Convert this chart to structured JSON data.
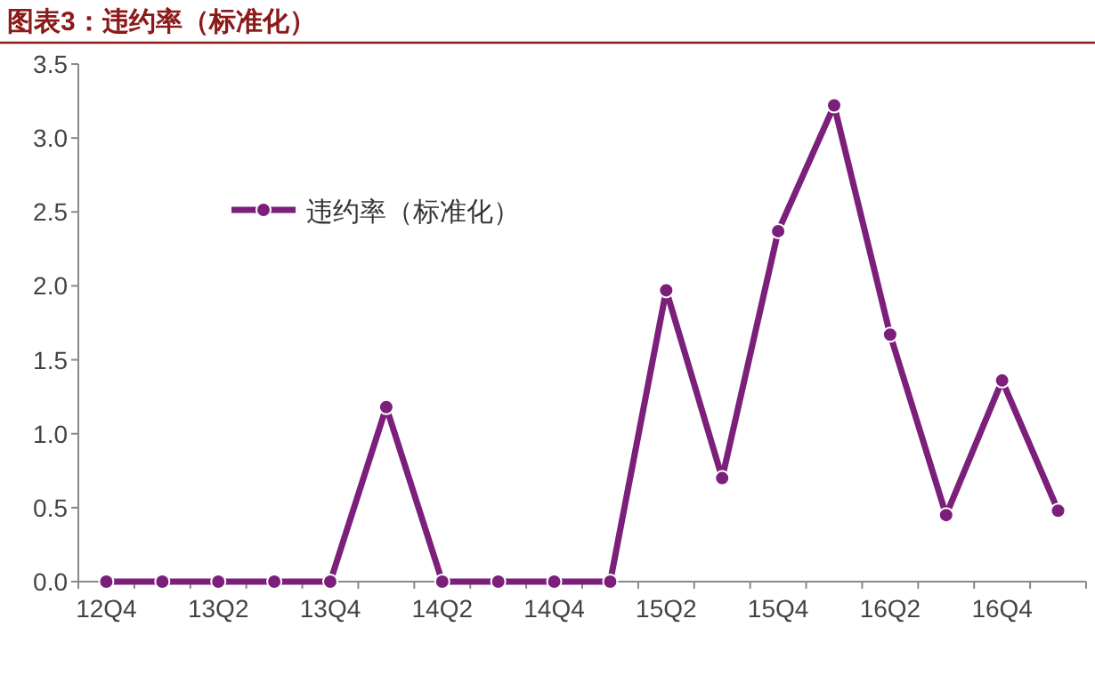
{
  "chart_data": {
    "type": "line",
    "title": "图表3：违约率（标准化）",
    "categories": [
      "12Q4",
      null,
      "13Q2",
      null,
      "13Q4",
      null,
      "14Q2",
      null,
      "14Q4",
      null,
      "15Q2",
      null,
      "15Q4",
      null,
      "16Q2",
      null,
      "16Q4",
      null
    ],
    "series": [
      {
        "name": "违约率（标准化）",
        "color": "#7b1f7b",
        "values": [
          0,
          0,
          0,
          0,
          0,
          1.18,
          0,
          0,
          0,
          0,
          1.97,
          0.7,
          2.37,
          3.22,
          1.67,
          0.45,
          1.36,
          0.48
        ]
      }
    ],
    "ylim": [
      0,
      3.5
    ],
    "yticks": [
      {
        "value": 0,
        "label": "0.0"
      },
      0.5,
      {
        "value": 1,
        "label": "1.0"
      },
      1.5,
      {
        "value": 2,
        "label": "2.0"
      },
      2.5,
      {
        "value": 3,
        "label": "3.0"
      },
      3.5
    ],
    "marker": "circle",
    "line_style": "solid",
    "legend": "top left",
    "grid": false
  }
}
